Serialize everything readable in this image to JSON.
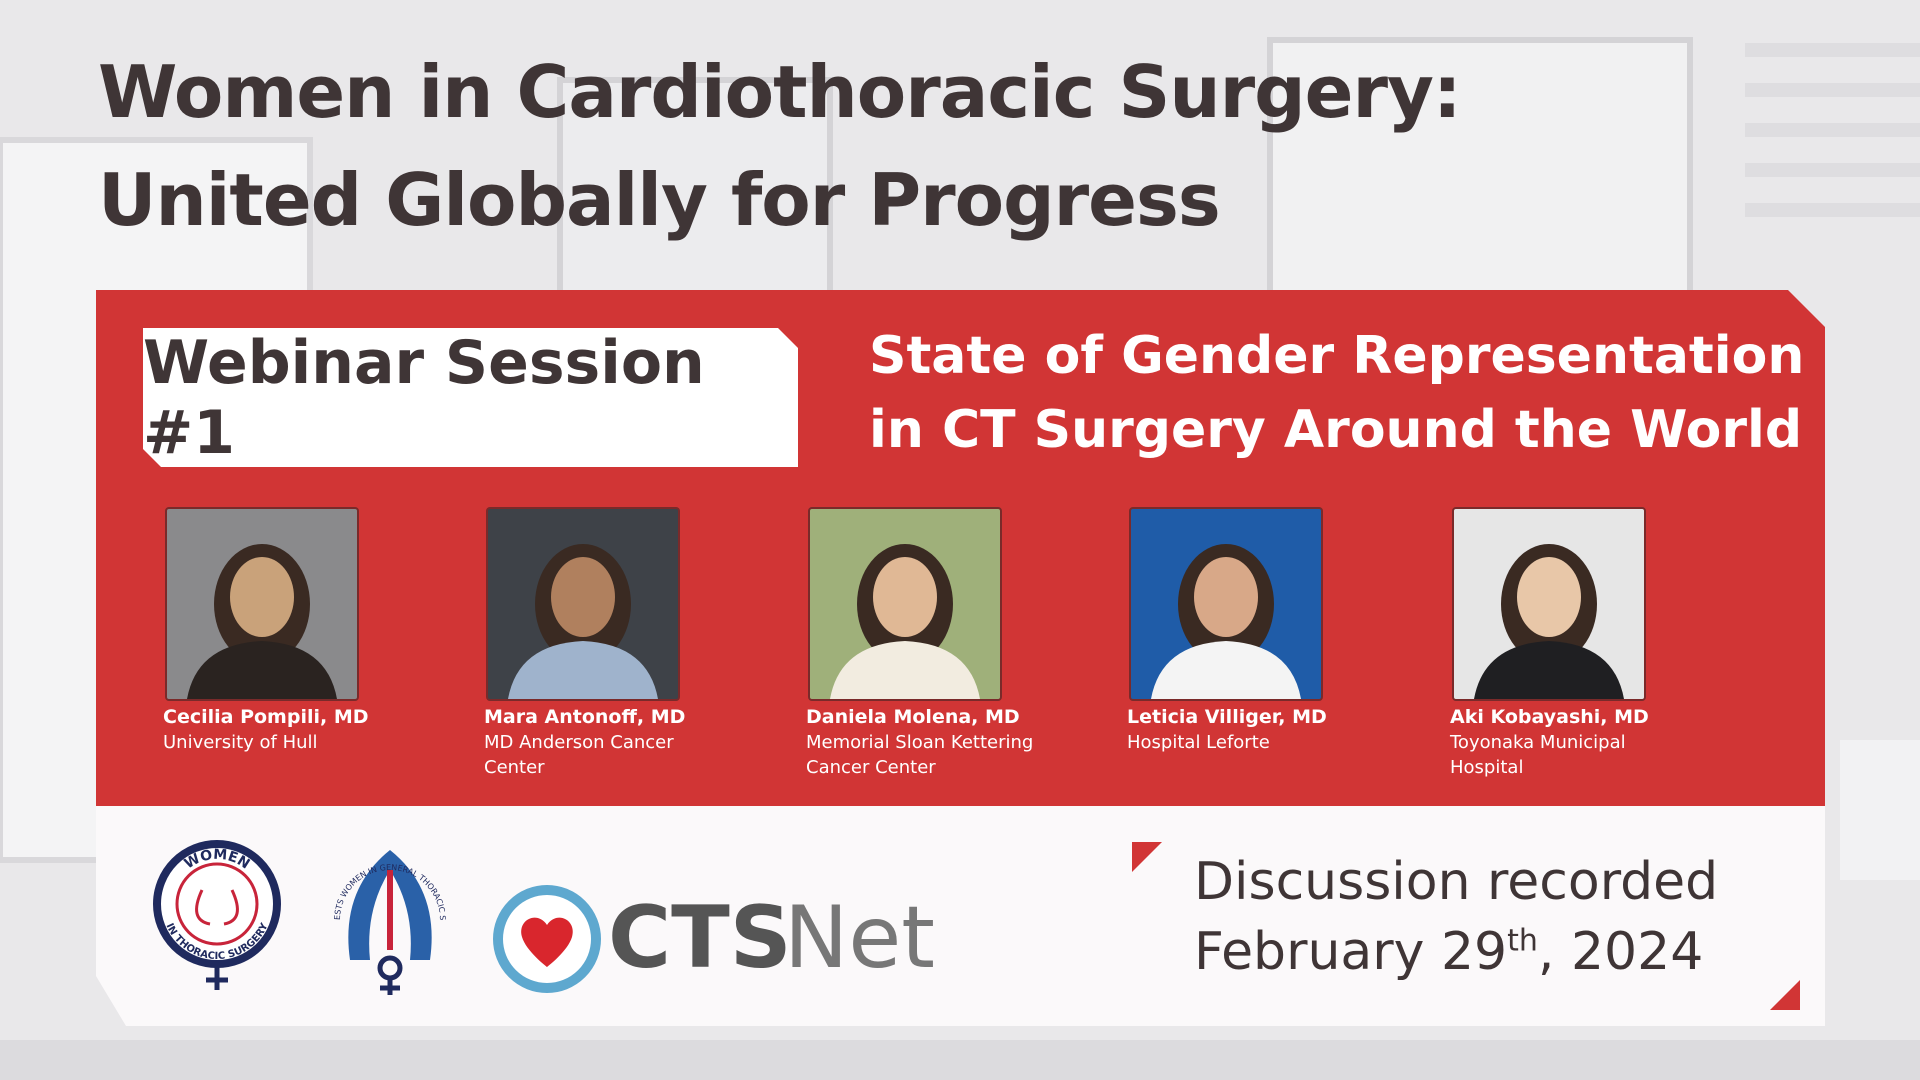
{
  "header": {
    "title_lines": [
      "Women in Cardiothoracic Surgery:",
      "United Globally for Progress"
    ]
  },
  "session": {
    "label": "Webinar Session #1",
    "title_lines": [
      "State of Gender Representation",
      "in CT Surgery Around the World"
    ]
  },
  "speakers": [
    {
      "name": "Cecilia Pompili, MD",
      "affiliation": [
        "University of Hull"
      ]
    },
    {
      "name": "Mara Antonoff, MD",
      "affiliation": [
        "MD Anderson Cancer",
        "Center"
      ]
    },
    {
      "name": "Daniela Molena, MD",
      "affiliation": [
        "Memorial Sloan Kettering",
        "Cancer Center"
      ]
    },
    {
      "name": "Leticia Villiger, MD",
      "affiliation": [
        "Hospital Leforte"
      ]
    },
    {
      "name": "Aki Kobayashi, MD",
      "affiliation": [
        "Toyonaka Municipal",
        "Hospital"
      ]
    }
  ],
  "logos": {
    "wits_top": "WOMEN",
    "wits_bottom": "IN THORACIC SURGERY",
    "ests": "ESTS WOMEN IN GENERAL THORACIC SURGERY",
    "cts": "CTS",
    "net": "Net"
  },
  "recording": {
    "line1": "Discussion recorded",
    "date_main": "February 29",
    "date_sup": "th",
    "date_end": ", 2024"
  }
}
